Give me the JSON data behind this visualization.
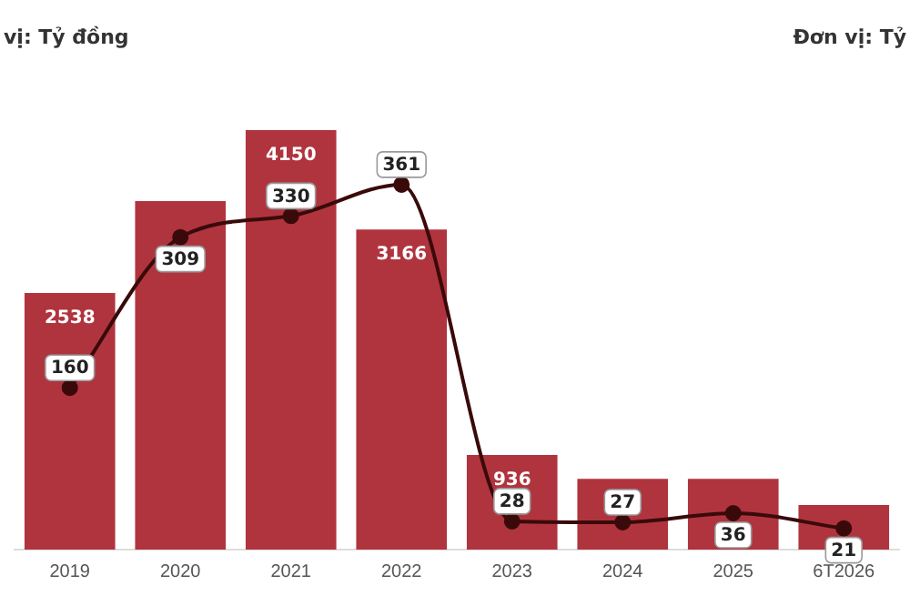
{
  "chart_data": {
    "type": "bar",
    "annotations": [
      "vị: Tỷ đồng",
      "Đơn vị: Tỷ"
    ],
    "categories": [
      "2019",
      "2020",
      "2021",
      "2022",
      "2023",
      "2024",
      "2025",
      "6T2026"
    ],
    "series": [
      {
        "color": "#b0343e",
        "values": [
          2538,
          3446,
          4150,
          3166,
          936,
          700,
          700,
          440
        ],
        "value_labels": [
          "2538",
          null,
          "4150",
          "3166",
          "936",
          null,
          null,
          null
        ]
      },
      {
        "type": "line",
        "axis": "y2",
        "color": "#3a0a0a",
        "values": [
          160,
          309,
          330,
          361,
          28,
          27,
          36,
          21
        ],
        "value_labels": [
          "160",
          "309",
          "330",
          "361",
          "28",
          "27",
          "36",
          "21"
        ]
      }
    ],
    "marker": "circle",
    "line_style": "solid",
    "grid": false,
    "legend": false
  }
}
